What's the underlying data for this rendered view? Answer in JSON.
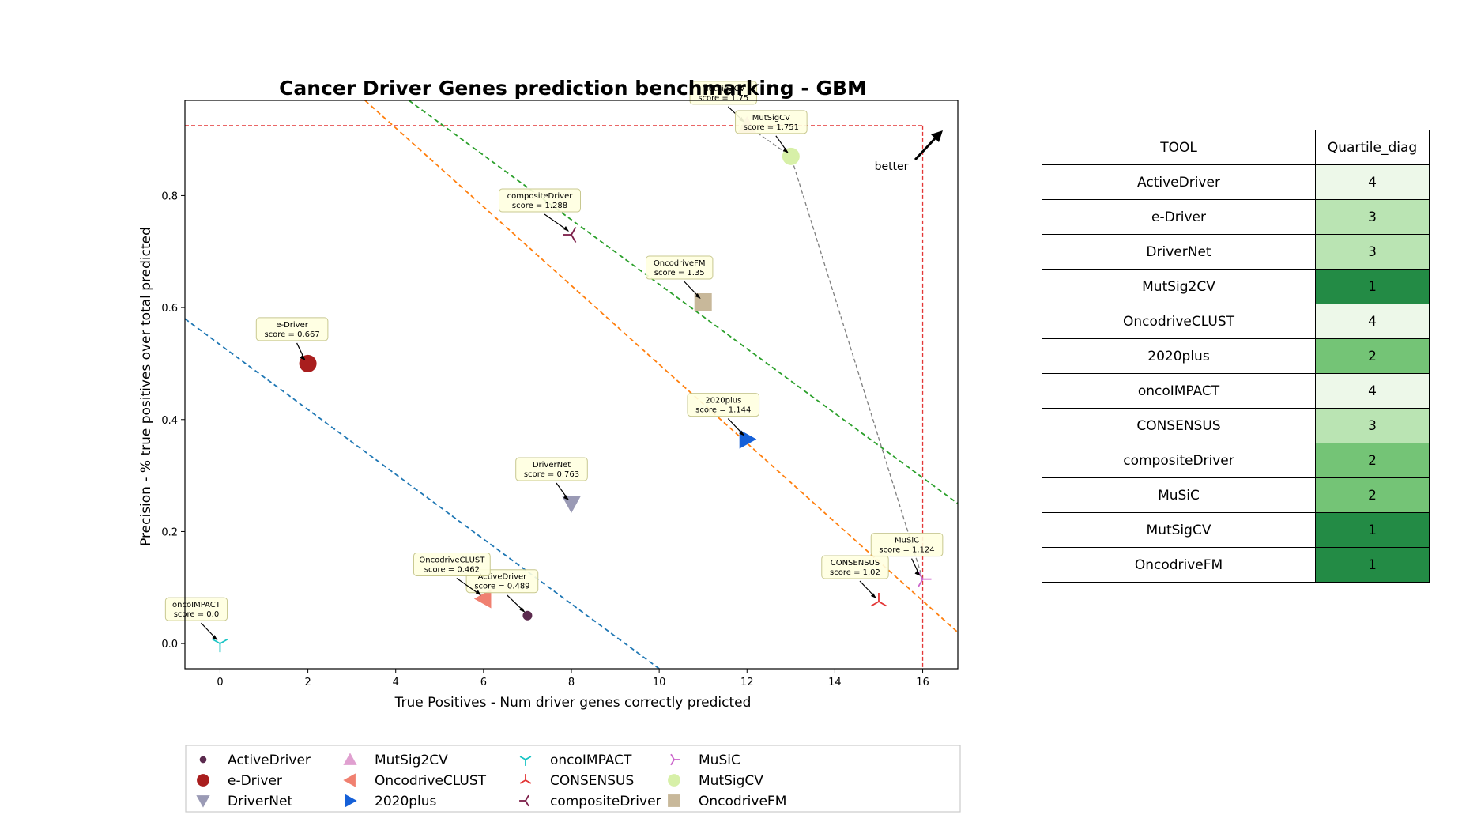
{
  "chart_data": {
    "type": "scatter",
    "title": "Cancer Driver Genes prediction benchmarking - GBM",
    "xlabel": "True Positives - Num driver genes correctly predicted",
    "ylabel": "Precision - % true positives over total predicted",
    "xlim": [
      -0.8,
      16.8
    ],
    "ylim": [
      -0.045,
      0.97
    ],
    "xticks": [
      "0",
      "2",
      "4",
      "6",
      "8",
      "10",
      "12",
      "14",
      "16"
    ],
    "yticks": [
      "0.0",
      "0.2",
      "0.4",
      "0.6",
      "0.8"
    ],
    "grid": false,
    "legend_placement": "bottom-outside",
    "better_label": "better",
    "points": [
      {
        "name": "ActiveDriver",
        "x": 7,
        "y": 0.05,
        "color": "#5b2a4e",
        "marker": "circle-small",
        "annotation": [
          "ActiveDriver",
          "score = 0.489"
        ]
      },
      {
        "name": "e-Driver",
        "x": 2,
        "y": 0.5,
        "color": "#a91e1e",
        "marker": "circle",
        "annotation": [
          "e-Driver",
          "score = 0.667"
        ]
      },
      {
        "name": "DriverNet",
        "x": 8,
        "y": 0.25,
        "color": "#9a9ab5",
        "marker": "triangle-down",
        "annotation": [
          "DriverNet",
          "score = 0.763"
        ]
      },
      {
        "name": "MutSig2CV",
        "x": 12,
        "y": 0.925,
        "color": "#e0a0d0",
        "marker": "triangle-up",
        "annotation": [
          "MutSig2CV",
          "score = 1.75"
        ]
      },
      {
        "name": "OncodriveCLUST",
        "x": 6,
        "y": 0.08,
        "color": "#f08070",
        "marker": "triangle-left",
        "annotation": [
          "OncodriveCLUST",
          "score = 0.462"
        ]
      },
      {
        "name": "2020plus",
        "x": 12,
        "y": 0.365,
        "color": "#1560d8",
        "marker": "triangle-right",
        "annotation": [
          "2020plus",
          "score = 1.144"
        ]
      },
      {
        "name": "oncoIMPACT",
        "x": 0,
        "y": 0.0,
        "color": "#19c4c4",
        "marker": "tri-down",
        "annotation": [
          "oncoIMPACT",
          "score = 0.0"
        ]
      },
      {
        "name": "CONSENSUS",
        "x": 15,
        "y": 0.075,
        "color": "#e33535",
        "marker": "tri-up",
        "annotation": [
          "CONSENSUS",
          "score = 1.02"
        ]
      },
      {
        "name": "compositeDriver",
        "x": 8,
        "y": 0.73,
        "color": "#7b1d48",
        "marker": "tri-left",
        "annotation": [
          "compositeDriver",
          "score = 1.288"
        ]
      },
      {
        "name": "MuSiC",
        "x": 16,
        "y": 0.115,
        "color": "#cc66cc",
        "marker": "tri-right",
        "annotation": [
          "MuSiC",
          "score = 1.124"
        ]
      },
      {
        "name": "MutSigCV",
        "x": 13,
        "y": 0.87,
        "color": "#d7f0a8",
        "marker": "circle",
        "annotation": [
          "MutSigCV",
          "score = 1.751"
        ]
      },
      {
        "name": "OncodriveFM",
        "x": 11,
        "y": 0.61,
        "color": "#c8b89a",
        "marker": "square",
        "annotation": [
          "OncodriveFM",
          "score = 1.35"
        ]
      }
    ],
    "quartile_lines": [
      {
        "color": "#1f77b4",
        "from": [
          -0.8,
          0.58
        ],
        "to": [
          10.0,
          -0.045
        ]
      },
      {
        "color": "#ff7f0e",
        "from": [
          3.3,
          0.97
        ],
        "to": [
          16.8,
          0.02
        ]
      },
      {
        "color": "#2ca02c",
        "from": [
          4.3,
          0.97
        ],
        "to": [
          16.8,
          0.25
        ]
      }
    ],
    "reference_lines": {
      "color": "#e33535",
      "precision": 0.925,
      "true_positives": 16
    },
    "pareto_front": {
      "color": "#808080",
      "points": [
        [
          12,
          0.925
        ],
        [
          13,
          0.87
        ],
        [
          16,
          0.115
        ]
      ]
    }
  },
  "table": {
    "headers": [
      "TOOL",
      "Quartile_diag"
    ],
    "rows": [
      {
        "tool": "ActiveDriver",
        "q": "4",
        "color": "#edf8e9"
      },
      {
        "tool": "e-Driver",
        "q": "3",
        "color": "#bae4b3"
      },
      {
        "tool": "DriverNet",
        "q": "3",
        "color": "#bae4b3"
      },
      {
        "tool": "MutSig2CV",
        "q": "1",
        "color": "#238b45"
      },
      {
        "tool": "OncodriveCLUST",
        "q": "4",
        "color": "#edf8e9"
      },
      {
        "tool": "2020plus",
        "q": "2",
        "color": "#74c476"
      },
      {
        "tool": "oncoIMPACT",
        "q": "4",
        "color": "#edf8e9"
      },
      {
        "tool": "CONSENSUS",
        "q": "3",
        "color": "#bae4b3"
      },
      {
        "tool": "compositeDriver",
        "q": "2",
        "color": "#74c476"
      },
      {
        "tool": "MuSiC",
        "q": "2",
        "color": "#74c476"
      },
      {
        "tool": "MutSigCV",
        "q": "1",
        "color": "#238b45"
      },
      {
        "tool": "OncodriveFM",
        "q": "1",
        "color": "#238b45"
      }
    ]
  }
}
